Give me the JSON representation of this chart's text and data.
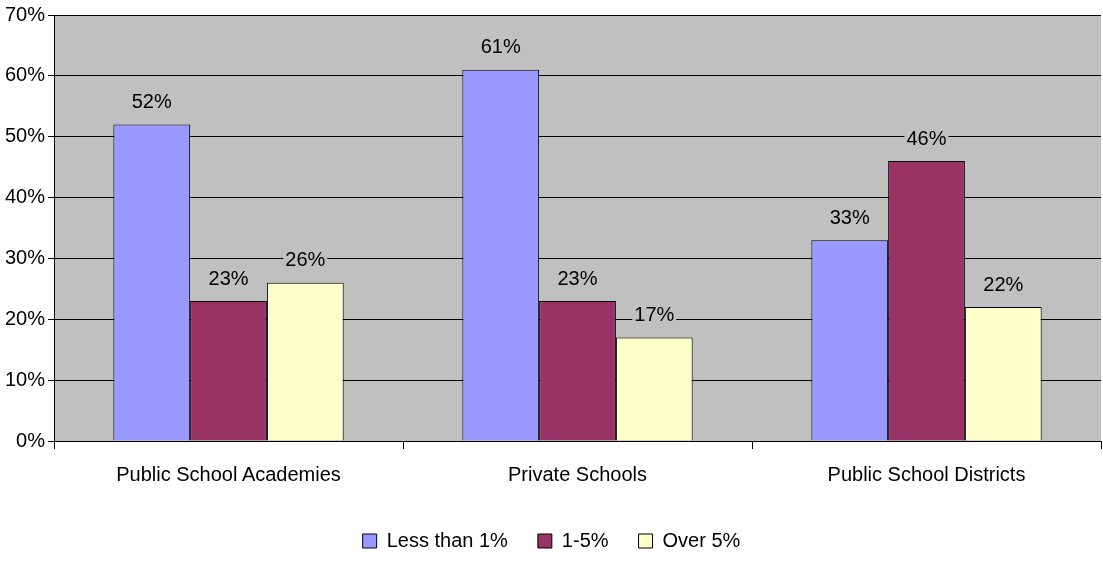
{
  "chart_data": {
    "type": "bar",
    "categories": [
      "Public School Academies",
      "Private Schools",
      "Public School Districts"
    ],
    "series": [
      {
        "name": "Less than 1%",
        "color": "#9999ff",
        "values": [
          52,
          61,
          33
        ],
        "value_labels": [
          "52%",
          "61%",
          "33%"
        ]
      },
      {
        "name": "1-5%",
        "color": "#993366",
        "values": [
          23,
          23,
          46
        ],
        "value_labels": [
          "23%",
          "23%",
          "46%"
        ]
      },
      {
        "name": "Over 5%",
        "color": "#ffffcc",
        "values": [
          26,
          17,
          22
        ],
        "value_labels": [
          "26%",
          "17%",
          "22%"
        ]
      }
    ],
    "ylim": [
      0,
      70
    ],
    "yticks": [
      {
        "value": 0,
        "label": "0%"
      },
      {
        "value": 10,
        "label": "10%"
      },
      {
        "value": 20,
        "label": "20%"
      },
      {
        "value": 30,
        "label": "30%"
      },
      {
        "value": 40,
        "label": "40%"
      },
      {
        "value": 50,
        "label": "50%"
      },
      {
        "value": 60,
        "label": "60%"
      },
      {
        "value": 70,
        "label": "70%"
      }
    ],
    "grid": "y",
    "legend": "bottom"
  }
}
